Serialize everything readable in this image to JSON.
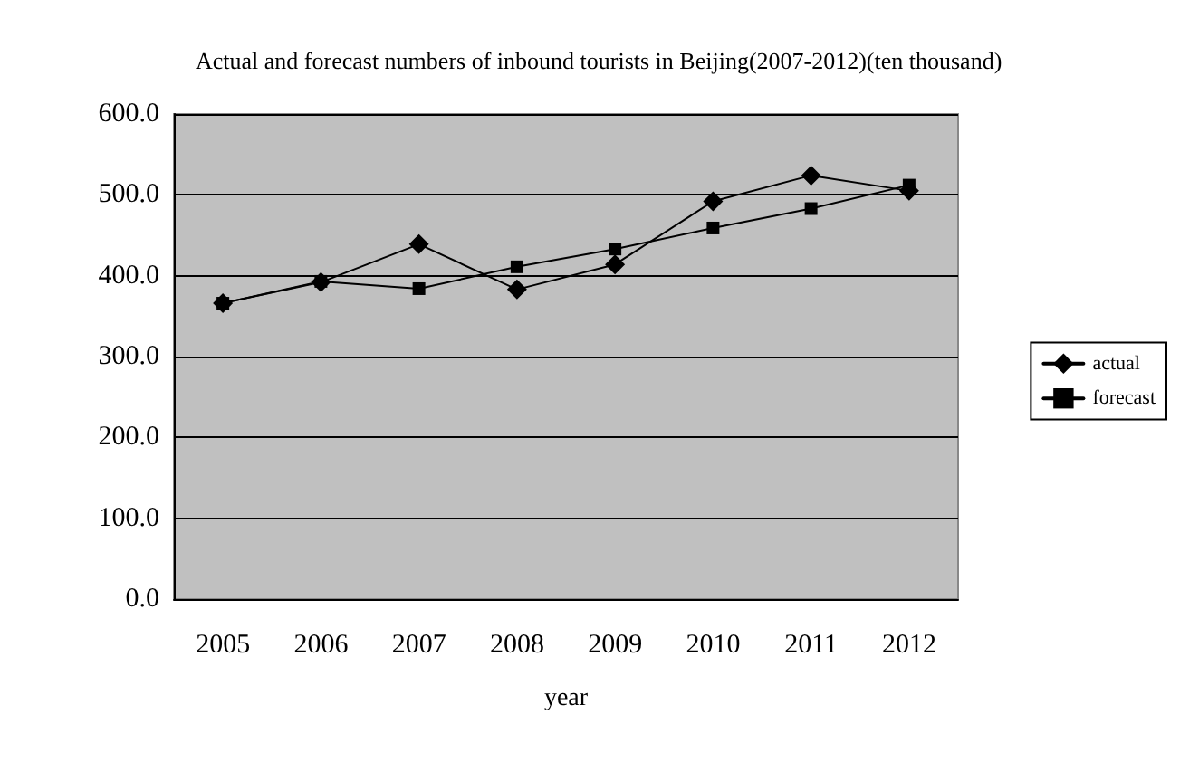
{
  "chart_data": {
    "type": "line",
    "title": "Actual and forecast numbers of inbound tourists in Beijing(2007-2012)(ten thousand)",
    "xlabel": "year",
    "categories": [
      "2005",
      "2006",
      "2007",
      "2008",
      "2009",
      "2010",
      "2011",
      "2012"
    ],
    "series": [
      {
        "name": "actual",
        "color": "#000000",
        "marker": "diamond",
        "values": [
          366,
          392,
          439,
          383,
          414,
          492,
          524,
          505
        ]
      },
      {
        "name": "forecast",
        "color": "#000000",
        "marker": "square",
        "values": [
          366,
          393,
          384,
          411,
          433,
          459,
          483,
          512
        ]
      }
    ],
    "ylim": [
      0,
      600
    ],
    "yticks": [
      {
        "value": 0,
        "label": "0.0"
      },
      {
        "value": 100,
        "label": "100.0"
      },
      {
        "value": 200,
        "label": "200.0"
      },
      {
        "value": 300,
        "label": "300.0"
      },
      {
        "value": 400,
        "label": "400.0"
      },
      {
        "value": 500,
        "label": "500.0"
      },
      {
        "value": 600,
        "label": "600.0"
      }
    ],
    "grid": "y",
    "legend": "right",
    "line_style": "solid"
  }
}
